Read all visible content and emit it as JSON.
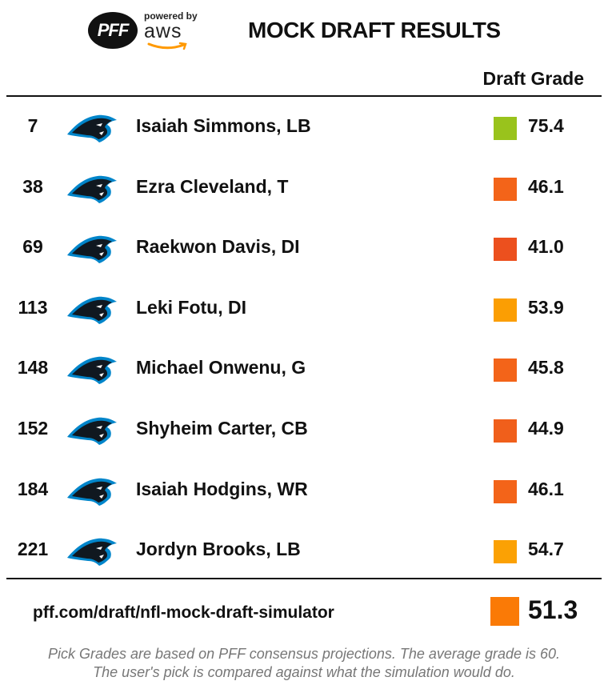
{
  "header": {
    "logo_text": "PFF",
    "powered_by": "powered by",
    "aws_text": "aws",
    "title": "MOCK DRAFT RESULTS"
  },
  "table": {
    "grade_header": "Draft Grade",
    "rows": [
      {
        "pick": "7",
        "player": "Isaiah Simmons, LB",
        "grade": "75.4",
        "color": "#99c31c"
      },
      {
        "pick": "38",
        "player": "Ezra Cleveland, T",
        "grade": "46.1",
        "color": "#f36419"
      },
      {
        "pick": "69",
        "player": "Raekwon Davis, DI",
        "grade": "41.0",
        "color": "#ec501e"
      },
      {
        "pick": "113",
        "player": "Leki Fotu, DI",
        "grade": "53.9",
        "color": "#fb9e03"
      },
      {
        "pick": "148",
        "player": "Michael Onwenu, G",
        "grade": "45.8",
        "color": "#f36419"
      },
      {
        "pick": "152",
        "player": "Shyheim Carter, CB",
        "grade": "44.9",
        "color": "#f05f1b"
      },
      {
        "pick": "184",
        "player": "Isaiah Hodgins, WR",
        "grade": "46.1",
        "color": "#f36419"
      },
      {
        "pick": "221",
        "player": "Jordyn Brooks, LB",
        "grade": "54.7",
        "color": "#fba104"
      }
    ]
  },
  "footer": {
    "url": "pff.com/draft/nfl-mock-draft-simulator",
    "average_grade": "51.3",
    "average_color": "#fa7a06",
    "note_line1": "Pick Grades are based on PFF consensus projections. The average grade is 60.",
    "note_line2": "The user's pick is compared against what the simulation would do."
  },
  "icons": {
    "team_logo": "panther-head-icon",
    "brand_logo": "pff-logo-icon",
    "aws_logo": "aws-logo-icon"
  },
  "colors": {
    "panther_blue": "#0085ca",
    "panther_black": "#101820"
  }
}
